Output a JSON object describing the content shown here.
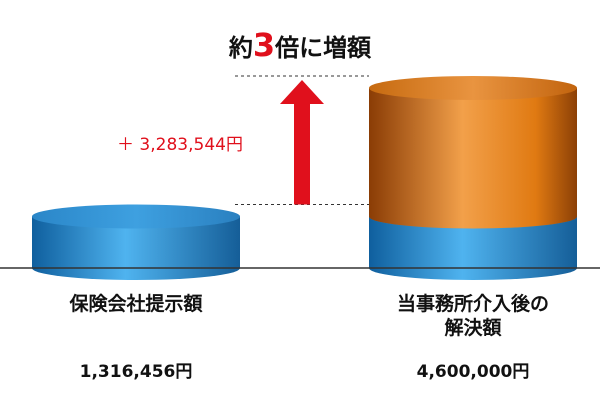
{
  "chart_data": {
    "type": "cylinder",
    "title": {
      "prefix": "約",
      "emphasis": "3",
      "suffix": "倍に増額"
    },
    "categories": [
      "保険会社提示額",
      "当事務所介入後の解決額"
    ],
    "series": [
      {
        "color": "#2a8fd6",
        "values": [
          1316456,
          1316456
        ]
      },
      {
        "color": "#e57c12",
        "values": [
          null,
          3283544
        ],
        "value_labels": [
          null,
          "＋ 3,283,544円"
        ]
      }
    ],
    "totals": [
      1316456,
      4600000
    ],
    "total_labels": [
      "1,316,456円",
      "4,600,000円"
    ],
    "ylim": [
      0,
      4600000
    ]
  }
}
